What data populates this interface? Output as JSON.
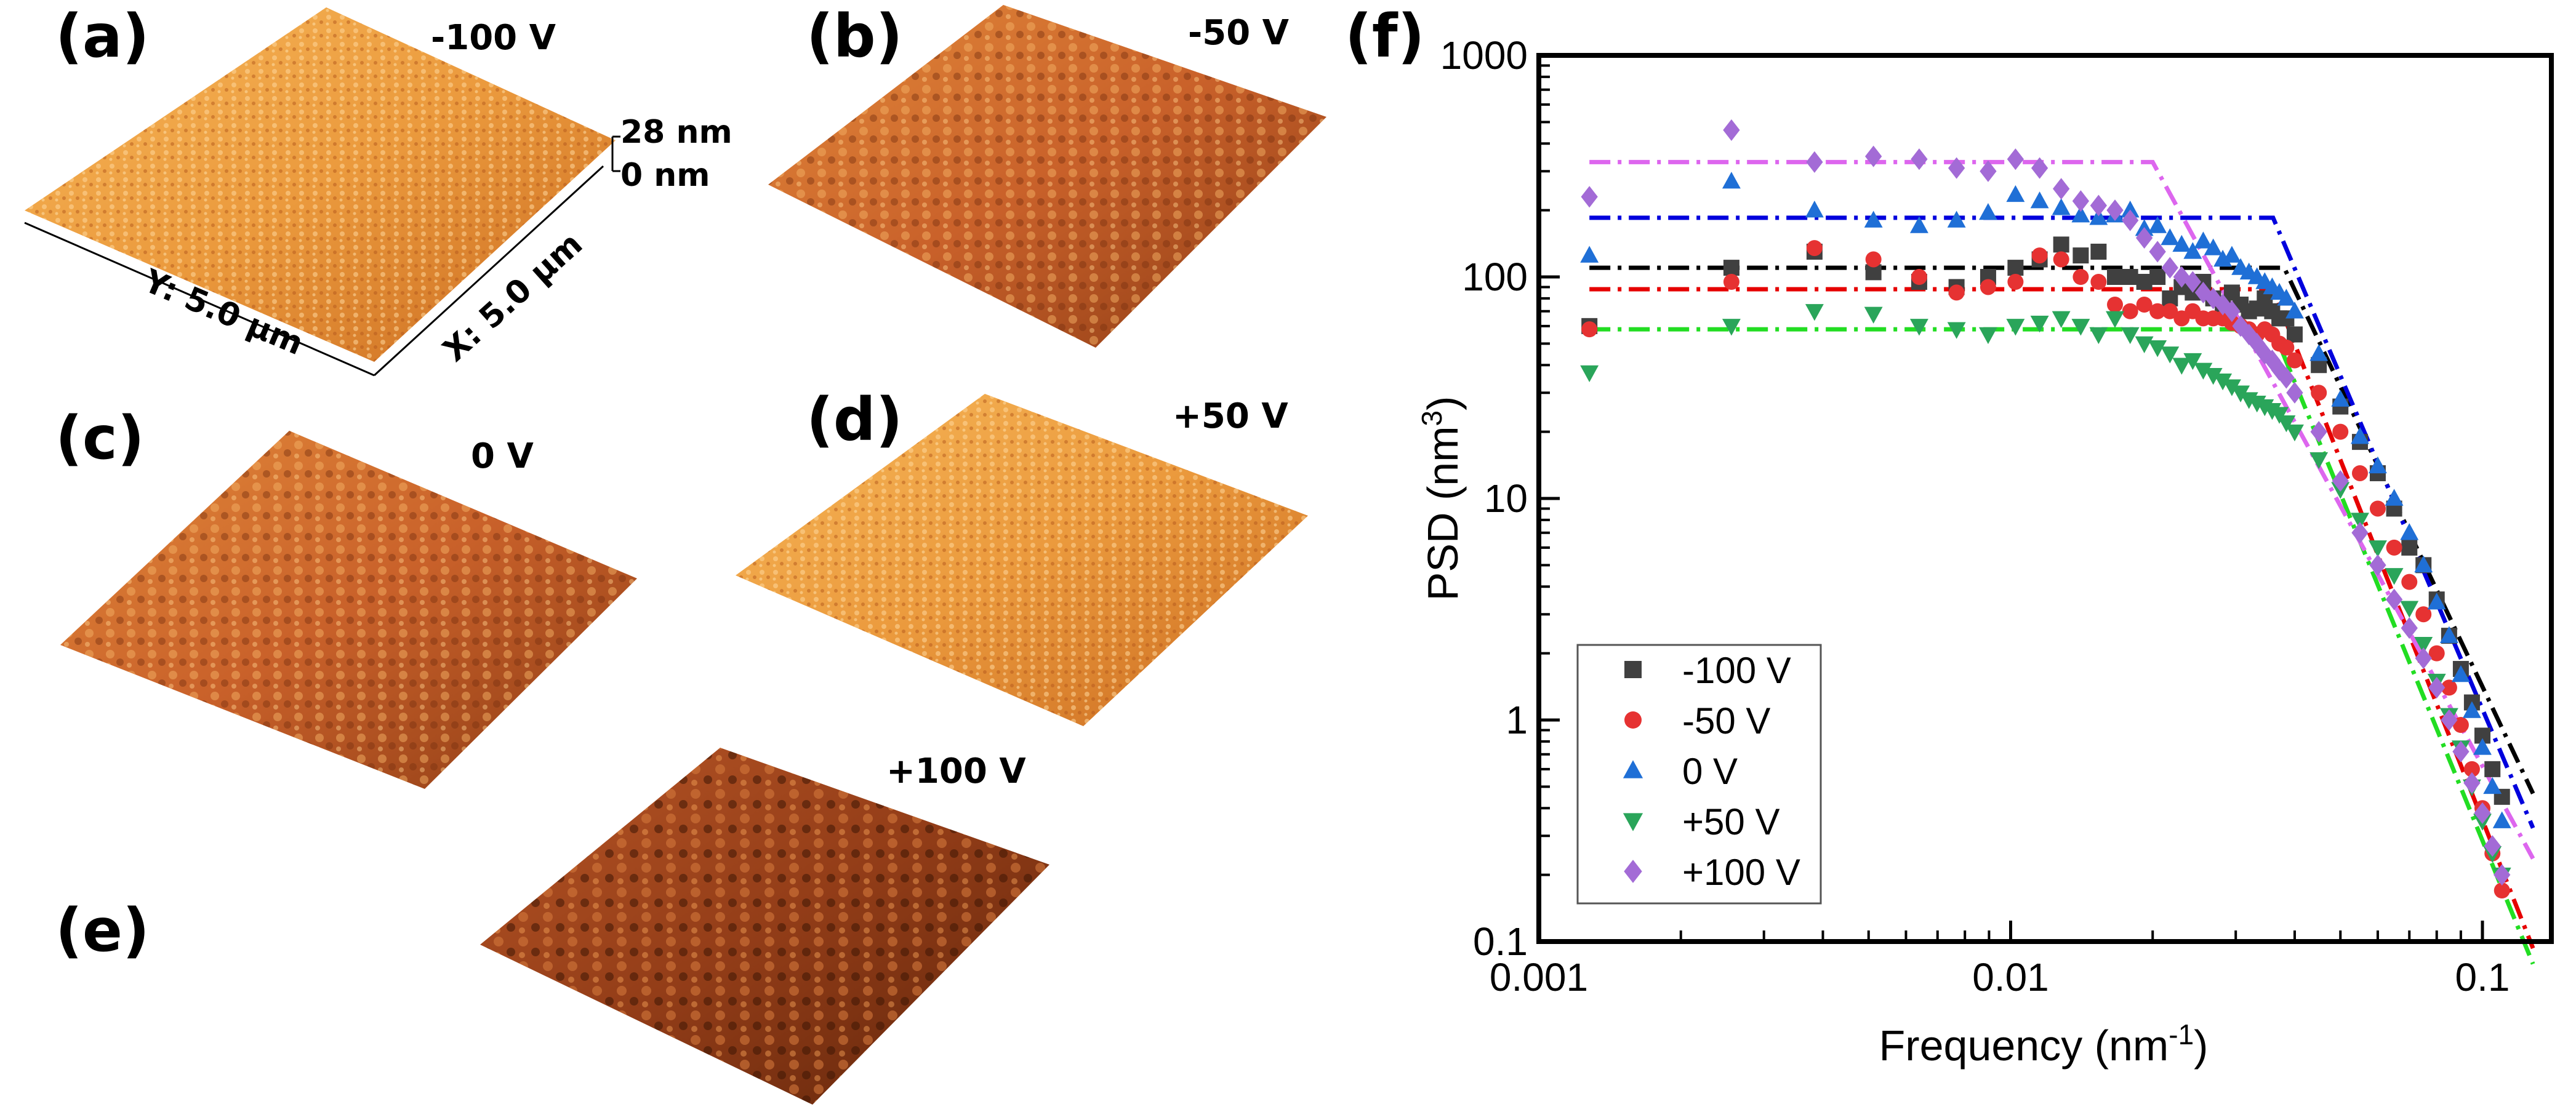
{
  "afm_panels": [
    {
      "label": "(a)",
      "bias": "-100 V"
    },
    {
      "label": "(b)",
      "bias": "-50 V"
    },
    {
      "label": "(c)",
      "bias": "0 V"
    },
    {
      "label": "(d)",
      "bias": "+50 V"
    },
    {
      "label": "(e)",
      "bias": "+100 V"
    }
  ],
  "scale": {
    "z_top": "28 nm",
    "z_bottom": "0 nm",
    "y_axis": "Y: 5.0 µm",
    "x_axis": "X: 5.0 µm"
  },
  "colors": {
    "afm_light": "#f0a544",
    "afm_mid": "#d26a22",
    "afm_dark": "#6e2c0c",
    "series_m100": "#404040",
    "series_m50": "#e63232",
    "series_0": "#1f6fd6",
    "series_p50": "#2aa55a",
    "series_p100": "#a36bd6",
    "fit_m100": "#000000",
    "fit_m50": "#e60000",
    "fit_0": "#0000dd",
    "fit_p50": "#22dd22",
    "fit_p100": "#dd66ee"
  },
  "chart_data": {
    "panel_label": "(f)",
    "type": "scatter",
    "xscale": "log",
    "yscale": "log",
    "xlabel": "Frequency (nm",
    "xlabel_sup": "-1",
    "xlabel_end": ")",
    "ylabel": "PSD (nm",
    "ylabel_sup": "3",
    "ylabel_end": ")",
    "xlim": [
      0.001,
      0.14
    ],
    "ylim": [
      0.1,
      1000
    ],
    "xticks": [
      {
        "v": 0.001,
        "t": "0.001"
      },
      {
        "v": 0.01,
        "t": "0.01"
      },
      {
        "v": 0.1,
        "t": "0.1"
      }
    ],
    "yticks": [
      {
        "v": 0.1,
        "t": "0.1"
      },
      {
        "v": 1,
        "t": "1"
      },
      {
        "v": 10,
        "t": "10"
      },
      {
        "v": 100,
        "t": "100"
      },
      {
        "v": 1000,
        "t": "1000"
      }
    ],
    "legend_position": "bottom-left",
    "series": [
      {
        "name": "-100 V",
        "marker": "square",
        "color": "#404040",
        "fit_color": "#000000",
        "fit": {
          "plateau": 110,
          "fc": 0.038,
          "slope": -4.5
        },
        "x": [
          0.00128,
          0.00256,
          0.00384,
          0.00512,
          0.0064,
          0.00768,
          0.00896,
          0.01024,
          0.01152,
          0.0128,
          0.01408,
          0.01536,
          0.01664,
          0.01792,
          0.0192,
          0.02048,
          0.02176,
          0.02304,
          0.02432,
          0.0256,
          0.02688,
          0.02816,
          0.02944,
          0.03072,
          0.032,
          0.03328,
          0.03456,
          0.03584,
          0.03712,
          0.0384,
          0.04,
          0.045,
          0.05,
          0.055,
          0.06,
          0.065,
          0.07,
          0.075,
          0.08,
          0.085,
          0.09,
          0.095,
          0.1,
          0.105,
          0.11
        ],
        "y": [
          60,
          110,
          130,
          105,
          95,
          90,
          100,
          110,
          120,
          140,
          125,
          130,
          100,
          100,
          95,
          100,
          80,
          90,
          85,
          95,
          80,
          75,
          85,
          75,
          70,
          72,
          80,
          70,
          65,
          65,
          55,
          40,
          26,
          18,
          13,
          9,
          6,
          5,
          3.5,
          2.4,
          1.7,
          1.2,
          0.85,
          0.6,
          0.45
        ]
      },
      {
        "name": "-50 V",
        "marker": "circle",
        "color": "#e63232",
        "fit_color": "#e60000",
        "fit": {
          "plateau": 88,
          "fc": 0.036,
          "slope": -5.4
        },
        "x": [
          0.00128,
          0.00256,
          0.00384,
          0.00512,
          0.0064,
          0.00768,
          0.00896,
          0.01024,
          0.01152,
          0.0128,
          0.01408,
          0.01536,
          0.01664,
          0.01792,
          0.0192,
          0.02048,
          0.02176,
          0.02304,
          0.02432,
          0.0256,
          0.02688,
          0.02816,
          0.02944,
          0.03072,
          0.032,
          0.03328,
          0.03456,
          0.03584,
          0.03712,
          0.0384,
          0.04,
          0.045,
          0.05,
          0.055,
          0.06,
          0.065,
          0.07,
          0.075,
          0.08,
          0.085,
          0.09,
          0.095,
          0.1,
          0.105,
          0.11
        ],
        "y": [
          58,
          95,
          135,
          120,
          100,
          85,
          90,
          95,
          125,
          120,
          100,
          95,
          75,
          70,
          75,
          70,
          70,
          65,
          70,
          65,
          65,
          65,
          62,
          60,
          58,
          55,
          58,
          55,
          50,
          48,
          42,
          30,
          20,
          13,
          9,
          6,
          4.2,
          3,
          2,
          1.4,
          0.95,
          0.6,
          0.4,
          0.25,
          0.17
        ]
      },
      {
        "name": "0 V",
        "marker": "triangle-up",
        "color": "#1f6fd6",
        "fit_color": "#0000dd",
        "fit": {
          "plateau": 185,
          "fc": 0.036,
          "slope": -5.0
        },
        "x": [
          0.00128,
          0.00256,
          0.00384,
          0.00512,
          0.0064,
          0.00768,
          0.00896,
          0.01024,
          0.01152,
          0.0128,
          0.01408,
          0.01536,
          0.01664,
          0.01792,
          0.0192,
          0.02048,
          0.02176,
          0.02304,
          0.02432,
          0.0256,
          0.02688,
          0.02816,
          0.02944,
          0.03072,
          0.032,
          0.03328,
          0.03456,
          0.03584,
          0.03712,
          0.0384,
          0.04,
          0.045,
          0.05,
          0.055,
          0.06,
          0.065,
          0.07,
          0.075,
          0.08,
          0.085,
          0.09,
          0.095,
          0.1,
          0.105,
          0.11
        ],
        "y": [
          125,
          270,
          200,
          180,
          170,
          180,
          195,
          235,
          220,
          205,
          190,
          185,
          190,
          200,
          165,
          170,
          150,
          140,
          130,
          145,
          135,
          120,
          125,
          110,
          105,
          100,
          95,
          90,
          85,
          80,
          70,
          45,
          28,
          19,
          14,
          10,
          7,
          5,
          3.4,
          2.4,
          1.6,
          1.1,
          0.75,
          0.5,
          0.35
        ]
      },
      {
        "name": "+50 V",
        "marker": "triangle-down",
        "color": "#2aa55a",
        "fit_color": "#22dd22",
        "fit": {
          "plateau": 58,
          "fc": 0.036,
          "slope": -5.2
        },
        "x": [
          0.00128,
          0.00256,
          0.00384,
          0.00512,
          0.0064,
          0.00768,
          0.00896,
          0.01024,
          0.01152,
          0.0128,
          0.01408,
          0.01536,
          0.01664,
          0.01792,
          0.0192,
          0.02048,
          0.02176,
          0.02304,
          0.02432,
          0.0256,
          0.02688,
          0.02816,
          0.02944,
          0.03072,
          0.032,
          0.03328,
          0.03456,
          0.03584,
          0.03712,
          0.0384,
          0.04,
          0.045,
          0.05,
          0.055,
          0.06,
          0.065,
          0.07,
          0.075,
          0.08,
          0.085,
          0.09,
          0.095,
          0.1,
          0.105,
          0.11
        ],
        "y": [
          37,
          60,
          70,
          68,
          60,
          58,
          55,
          60,
          62,
          65,
          60,
          55,
          65,
          55,
          50,
          48,
          45,
          40,
          42,
          38,
          36,
          34,
          32,
          30,
          28,
          27,
          26,
          25,
          24,
          22,
          20,
          15,
          11,
          8,
          6,
          4.5,
          3.2,
          2.2,
          1.5,
          1.05,
          0.75,
          0.5,
          0.35,
          0.25,
          0.2
        ]
      },
      {
        "name": "+100 V",
        "marker": "diamond",
        "color": "#a36bd6",
        "fit_color": "#dd66ee",
        "fit": {
          "plateau": 330,
          "fc": 0.02,
          "slope": -3.9
        },
        "x": [
          0.00128,
          0.00256,
          0.00384,
          0.00512,
          0.0064,
          0.00768,
          0.00896,
          0.01024,
          0.01152,
          0.0128,
          0.01408,
          0.01536,
          0.01664,
          0.01792,
          0.0192,
          0.02048,
          0.02176,
          0.02304,
          0.02432,
          0.0256,
          0.02688,
          0.02816,
          0.02944,
          0.03072,
          0.032,
          0.03328,
          0.03456,
          0.03584,
          0.03712,
          0.0384,
          0.04,
          0.045,
          0.05,
          0.055,
          0.06,
          0.065,
          0.07,
          0.075,
          0.08,
          0.085,
          0.09,
          0.095,
          0.1,
          0.105,
          0.11
        ],
        "y": [
          230,
          460,
          330,
          350,
          340,
          310,
          300,
          340,
          310,
          250,
          220,
          210,
          200,
          180,
          150,
          130,
          110,
          100,
          95,
          85,
          80,
          75,
          70,
          60,
          55,
          50,
          45,
          42,
          38,
          35,
          30,
          20,
          12,
          7,
          5,
          3.5,
          2.6,
          1.9,
          1.4,
          1,
          0.72,
          0.52,
          0.38,
          0.27,
          0.2
        ]
      }
    ]
  }
}
